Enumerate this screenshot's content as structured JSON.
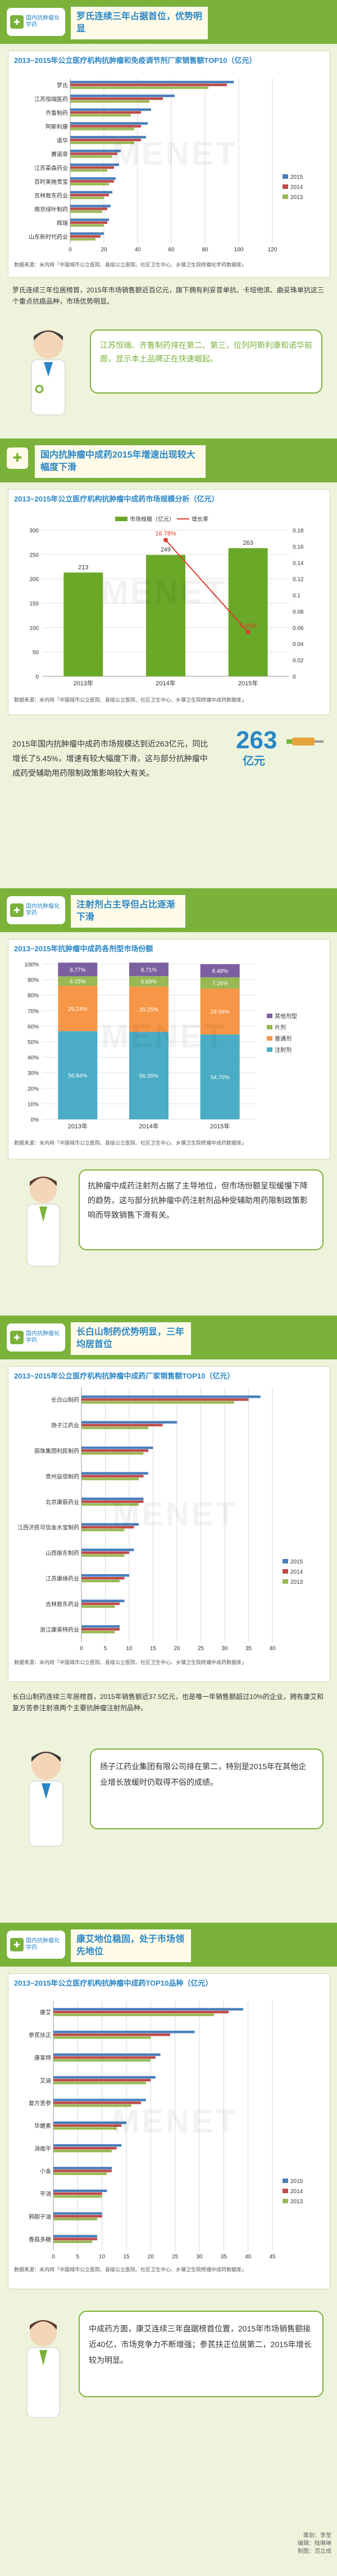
{
  "colors": {
    "green": "#7ab23a",
    "blue": "#2a86c6",
    "red": "#e03c2c",
    "y2015": "#4a7ebb",
    "y2014": "#be4b48",
    "y2013": "#98b954",
    "purple": "#7c5fa0",
    "teal": "#4bacc6",
    "orange": "#f79646"
  },
  "badge_text": "国内抗肿瘤化学药",
  "section1": {
    "headline": "罗氏连续三年占据首位，优势明显",
    "chart_title": "2013~2015年公立医疗机构抗肿瘤和免疫调节剂厂家销售额TOP10（亿元）",
    "source": "数据来源：米内网「中国城市公立医院、县级公立医院、社区卫生中心、乡镇卫生院终端化学药数据库」",
    "text": "罗氏连续三年位居榜首，2015年市场销售额近百亿元，旗下拥有利妥昔单抗、卡培他滨、曲妥珠单抗这三个重点抗癌品种，市场优势明显。",
    "bubble": "江苏恒瑞、齐鲁制药排在第二、第三，位列阿斯利康和诺华前面，显示本土品牌正在快速崛起。"
  },
  "section2": {
    "headline": "国内抗肿瘤中成药2015年增速出现较大幅度下滑",
    "chart_title": "2013~2015年公立医疗机构抗肿瘤中成药市场规模分析（亿元）",
    "source": "数据来源：米内网「中国城市公立医院、县级公立医院、社区卫生中心、乡镇卫生院终端中成药数据库」",
    "big_label": "263",
    "big_unit": "亿元",
    "text": "2015年国内抗肿瘤中成药市场规模达到近263亿元，同比增长了5.45%，增速有较大幅度下滑，这与部分抗肿瘤中成药受辅助用药限制政策影响较大有关。"
  },
  "section3": {
    "headline": "注射剂占主导但占比逐渐下滑",
    "chart_title": "2013~2015年抗肿瘤中成药各剂型市场份额",
    "source": "数据来源：米内网「中国城市公立医院、县级公立医院、社区卫生中心、乡镇卫生院终端中成药数据库」",
    "text": "抗肿瘤中成药注射剂占据了主导地位，但市场份额呈现缓慢下降的趋势，这与部分抗肿瘤中药注射剂品种受辅助用药限制政策影响而导致销售下滑有关。"
  },
  "section4": {
    "headline": "长白山制药优势明显，三年均居首位",
    "chart_title": "2013~2015年公立医疗机构抗肿瘤中成药厂家销售额TOP10（亿元）",
    "source": "数据来源：米内网「中国城市公立医院、县级公立医院、社区卫生中心、乡镇卫生院终端中成药数据库」",
    "text": "长白山制药连续三年居榜首，2015年销售额近37.5亿元，也是唯一年销售额超过10%的企业，拥有康艾和复方苦参注射液两个主要抗肿瘤注射剂品种。",
    "bubble": "扬子江药业集团有限公司排在第二，特别是2015年在其他企业增长放缓时仍取得不俗的成绩。"
  },
  "section5": {
    "headline": "康艾地位稳固，处于市场领先地位",
    "chart_title": "2013~2015年公立医疗机构抗肿瘤中成药TOP10品种（亿元）",
    "source": "数据来源：米内网「中国城市公立医院、县级公立医院、社区卫生中心、乡镇卫生院终端中成药数据库」",
    "text": "中成药方面，康艾连续三年盘踞榜首位置，2015年市场销售额接近40亿，市场竞争力不断增强；参芪扶正位居第二，2015年增长较为明显。"
  },
  "footer": {
    "lines": [
      "策划：李莹",
      "编辑：陆琳琳",
      "制图：范立成"
    ]
  },
  "chart_data": [
    {
      "type": "bar",
      "orientation": "horizontal",
      "title": "2013~2015年公立医疗机构抗肿瘤和免疫调节剂厂家销售额TOP10（亿元）",
      "categories": [
        "罗氏",
        "江苏恒瑞医药",
        "齐鲁制药",
        "阿斯利康",
        "诺华",
        "赛诺菲",
        "江苏豪森药业",
        "百时美施贵宝",
        "吉林敖东药业",
        "南京绿叶制药",
        "辉瑞",
        "山东新时代药业"
      ],
      "series": [
        {
          "name": "2015",
          "values": [
            97,
            62,
            48,
            46,
            45,
            30,
            29,
            27,
            25,
            24,
            23,
            20
          ]
        },
        {
          "name": "2014",
          "values": [
            93,
            55,
            42,
            42,
            42,
            28,
            26,
            26,
            23,
            22,
            22,
            18
          ]
        },
        {
          "name": "2013",
          "values": [
            82,
            47,
            36,
            38,
            38,
            25,
            22,
            23,
            20,
            19,
            20,
            15
          ]
        }
      ],
      "xlim": [
        0,
        120
      ],
      "xticks": [
        0,
        20,
        40,
        60,
        80,
        100,
        120
      ],
      "legend": "right"
    },
    {
      "type": "bar+line",
      "title": "2013~2015年公立医疗机构抗肿瘤中成药市场规模分析（亿元）",
      "categories": [
        "2013年",
        "2014年",
        "2015年"
      ],
      "series": [
        {
          "name": "市场规模（亿元）",
          "type": "bar",
          "values": [
            213,
            249,
            263
          ],
          "labels": [
            "213",
            "249",
            "263"
          ]
        },
        {
          "name": "增长率",
          "type": "line",
          "axis": "right",
          "values": [
            null,
            0.1678,
            0.0545
          ],
          "labels": [
            "",
            "16.78%",
            "5.45%"
          ]
        }
      ],
      "ylim": [
        0,
        300
      ],
      "yticks": [
        0,
        50,
        100,
        150,
        200,
        250,
        300
      ],
      "y2lim": [
        0,
        0.18
      ],
      "y2ticks": [
        0,
        0.02,
        0.04,
        0.06,
        0.08,
        0.1,
        0.12,
        0.14,
        0.16,
        0.18
      ],
      "legend": "top"
    },
    {
      "type": "stacked-bar",
      "title": "2013~2015年抗肿瘤中成药各剂型市场份额",
      "categories": [
        "2013年",
        "2014年",
        "2015年"
      ],
      "series": [
        {
          "name": "注射剂",
          "values": [
            56.84,
            56.35,
            54.7
          ],
          "labels": [
            "56.84%",
            "56.35%",
            "54.70%"
          ]
        },
        {
          "name": "普通剂",
          "values": [
            29.24,
            29.25,
            29.56
          ],
          "labels": [
            "29.24%",
            "29.25%",
            "29.56%"
          ]
        },
        {
          "name": "片剂",
          "values": [
            6.15,
            6.69,
            7.26
          ],
          "labels": [
            "6.15%",
            "6.69%",
            "7.26%"
          ]
        },
        {
          "name": "其他剂型",
          "values": [
            8.77,
            8.71,
            8.48
          ],
          "labels": [
            "8.77%",
            "8.71%",
            "8.48%"
          ]
        }
      ],
      "ylim": [
        0,
        100
      ],
      "yticks": [
        "0%",
        "10%",
        "20%",
        "30%",
        "40%",
        "50%",
        "60%",
        "70%",
        "80%",
        "90%",
        "100%"
      ],
      "legend": "right"
    },
    {
      "type": "bar",
      "orientation": "horizontal",
      "title": "2013~2015年公立医疗机构抗肿瘤中成药厂家销售额TOP10（亿元）",
      "categories": [
        "长白山制药",
        "扬子江药业",
        "丽珠集团利民制药",
        "贵州益佰制药",
        "北京康辰药业",
        "江西济民可信金水宝制药",
        "山西振东制药",
        "江苏康缘药业",
        "吉林敖东药业",
        "浙江康莱特药业"
      ],
      "series": [
        {
          "name": "2015",
          "values": [
            37.5,
            20,
            15,
            14,
            13,
            12,
            11,
            10,
            9,
            8
          ]
        },
        {
          "name": "2014",
          "values": [
            35,
            17,
            14,
            13,
            13,
            11,
            10,
            9,
            8,
            8
          ]
        },
        {
          "name": "2013",
          "values": [
            32,
            14,
            13,
            12,
            12,
            9,
            9,
            8,
            7,
            7
          ]
        }
      ],
      "xlim": [
        0,
        40
      ],
      "xticks": [
        0,
        5,
        10,
        15,
        20,
        25,
        30,
        35,
        40
      ],
      "legend": "right"
    },
    {
      "type": "bar",
      "orientation": "horizontal",
      "title": "2013~2015年公立医疗机构抗肿瘤中成药TOP10品种（亿元）",
      "categories": [
        "康艾",
        "参芪扶正",
        "康莱特",
        "艾迪",
        "复方苦参",
        "华蟾素",
        "消癌平",
        "小金",
        "平消",
        "鸦胆子油",
        "香菇多糖"
      ],
      "series": [
        {
          "name": "2015",
          "values": [
            39,
            29,
            22,
            21,
            19,
            15,
            14,
            12,
            11,
            10,
            9
          ]
        },
        {
          "name": "2014",
          "values": [
            36,
            24,
            21,
            20,
            18,
            14,
            13,
            12,
            10,
            10,
            9
          ]
        },
        {
          "name": "2013",
          "values": [
            33,
            20,
            20,
            19,
            16,
            13,
            12,
            11,
            10,
            9,
            8
          ]
        }
      ],
      "xlim": [
        0,
        45
      ],
      "xticks": [
        0,
        5,
        10,
        15,
        20,
        25,
        30,
        35,
        40,
        45
      ],
      "legend": "right"
    }
  ]
}
